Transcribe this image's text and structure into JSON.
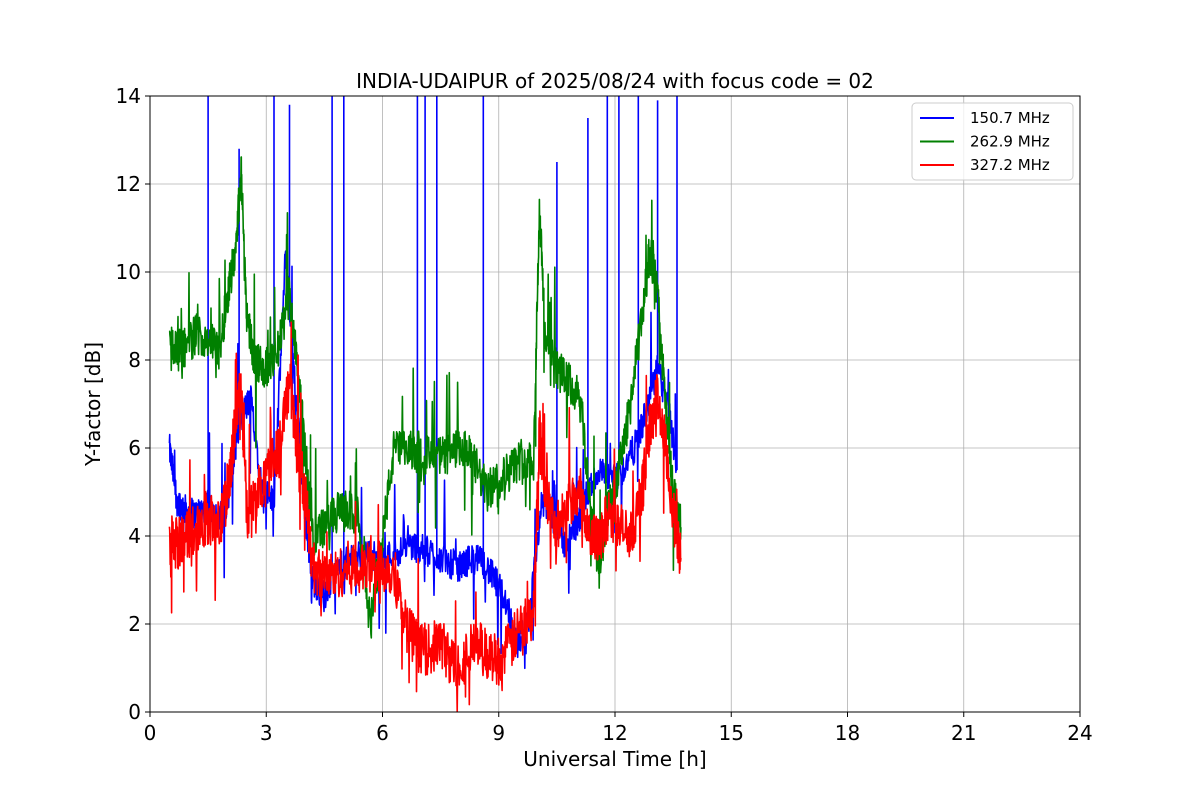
{
  "chart_data": {
    "type": "line",
    "title": "INDIA-UDAIPUR of 2025/08/24 with focus code = 02",
    "xlabel": "Universal Time [h]",
    "ylabel": "Y-factor [dB]",
    "xlim": [
      0,
      24
    ],
    "ylim": [
      0,
      14
    ],
    "xticks": [
      0,
      3,
      6,
      9,
      12,
      15,
      18,
      21,
      24
    ],
    "yticks": [
      0,
      2,
      4,
      6,
      8,
      10,
      12,
      14
    ],
    "grid": true,
    "legend_position": "top-right",
    "series": [
      {
        "name": "150.7 MHz",
        "color": "#0000ff",
        "x": [
          0.5,
          0.7,
          0.9,
          1.2,
          1.5,
          1.8,
          2.0,
          2.3,
          2.6,
          2.9,
          3.2,
          3.5,
          3.7,
          4.0,
          4.2,
          4.5,
          4.8,
          5.2,
          5.6,
          6.0,
          6.3,
          6.7,
          7.0,
          7.3,
          7.7,
          8.0,
          8.3,
          8.6,
          8.9,
          9.2,
          9.5,
          9.8,
          10.1,
          10.4,
          10.7,
          11.0,
          11.3,
          11.6,
          11.9,
          12.2,
          12.5,
          12.8,
          13.1,
          13.4,
          13.6
        ],
        "y": [
          6.0,
          4.8,
          4.6,
          4.5,
          4.7,
          4.4,
          4.8,
          6.5,
          7.2,
          5.0,
          4.8,
          10.5,
          8.0,
          4.5,
          3.0,
          2.6,
          3.2,
          3.5,
          3.6,
          3.5,
          3.6,
          3.8,
          3.7,
          3.6,
          3.4,
          3.3,
          3.5,
          3.4,
          3.0,
          2.5,
          1.5,
          2.2,
          4.8,
          4.5,
          3.8,
          4.2,
          5.0,
          5.5,
          5.2,
          5.5,
          6.0,
          6.8,
          7.8,
          6.8,
          5.5
        ],
        "spikes": [
          {
            "x": 1.5,
            "y": 14.0
          },
          {
            "x": 2.3,
            "y": 12.3
          },
          {
            "x": 3.2,
            "y": 13.6
          },
          {
            "x": 3.6,
            "y": 13.3
          },
          {
            "x": 4.7,
            "y": 14.0
          },
          {
            "x": 5.0,
            "y": 14.0
          },
          {
            "x": 6.9,
            "y": 14.0
          },
          {
            "x": 7.1,
            "y": 14.0
          },
          {
            "x": 7.4,
            "y": 14.0
          },
          {
            "x": 8.6,
            "y": 14.0
          },
          {
            "x": 10.5,
            "y": 12.0
          },
          {
            "x": 11.3,
            "y": 13.0
          },
          {
            "x": 11.8,
            "y": 14.0
          },
          {
            "x": 12.1,
            "y": 13.8
          },
          {
            "x": 12.6,
            "y": 14.0
          },
          {
            "x": 13.1,
            "y": 13.4
          },
          {
            "x": 13.6,
            "y": 14.0
          }
        ]
      },
      {
        "name": "262.9 MHz",
        "color": "#008000",
        "x": [
          0.5,
          0.7,
          0.9,
          1.2,
          1.5,
          1.8,
          2.0,
          2.2,
          2.35,
          2.5,
          2.7,
          3.0,
          3.3,
          3.6,
          3.8,
          4.0,
          4.2,
          4.5,
          4.8,
          5.1,
          5.4,
          5.7,
          6.0,
          6.3,
          6.6,
          6.9,
          7.2,
          7.5,
          7.8,
          8.1,
          8.4,
          8.7,
          9.0,
          9.3,
          9.6,
          9.9,
          10.05,
          10.2,
          10.5,
          10.8,
          11.1,
          11.4,
          11.6,
          11.8,
          12.1,
          12.4,
          12.7,
          12.9,
          13.1,
          13.3,
          13.5,
          13.7
        ],
        "y": [
          8.5,
          8.2,
          8.3,
          8.6,
          8.5,
          8.2,
          9.5,
          10.5,
          12.3,
          9.0,
          8.0,
          7.8,
          8.2,
          9.5,
          8.0,
          6.0,
          4.0,
          4.2,
          4.5,
          4.6,
          4.4,
          2.0,
          4.0,
          6.0,
          5.9,
          6.0,
          5.8,
          5.8,
          5.9,
          6.0,
          5.6,
          5.0,
          5.3,
          5.5,
          5.8,
          5.7,
          11.5,
          8.5,
          7.8,
          7.5,
          7.0,
          4.5,
          3.2,
          4.5,
          5.5,
          7.0,
          9.0,
          10.5,
          9.5,
          7.0,
          5.0,
          4.2
        ]
      },
      {
        "name": "327.2 MHz",
        "color": "#ff0000",
        "x": [
          0.5,
          0.7,
          0.9,
          1.2,
          1.5,
          1.8,
          2.0,
          2.2,
          2.35,
          2.5,
          2.7,
          3.0,
          3.3,
          3.6,
          3.8,
          4.0,
          4.2,
          4.5,
          4.8,
          5.1,
          5.4,
          5.7,
          6.0,
          6.3,
          6.6,
          6.9,
          7.2,
          7.5,
          7.8,
          8.1,
          8.4,
          8.7,
          9.0,
          9.3,
          9.6,
          9.9,
          10.05,
          10.2,
          10.5,
          10.8,
          11.1,
          11.4,
          11.6,
          11.8,
          12.1,
          12.4,
          12.7,
          12.9,
          13.1,
          13.3,
          13.5,
          13.7
        ],
        "y": [
          4.0,
          3.8,
          4.0,
          4.2,
          4.4,
          4.2,
          5.0,
          6.5,
          7.5,
          4.5,
          4.8,
          5.5,
          6.0,
          7.5,
          6.0,
          5.0,
          3.3,
          3.1,
          3.1,
          3.3,
          3.2,
          3.3,
          3.3,
          3.2,
          2.0,
          1.5,
          1.4,
          1.6,
          1.1,
          1.2,
          1.6,
          1.3,
          1.2,
          1.5,
          2.0,
          2.2,
          6.5,
          5.0,
          4.2,
          4.8,
          5.0,
          4.0,
          3.8,
          4.5,
          4.2,
          4.0,
          5.0,
          6.5,
          7.2,
          6.0,
          4.5,
          3.5
        ]
      }
    ]
  }
}
